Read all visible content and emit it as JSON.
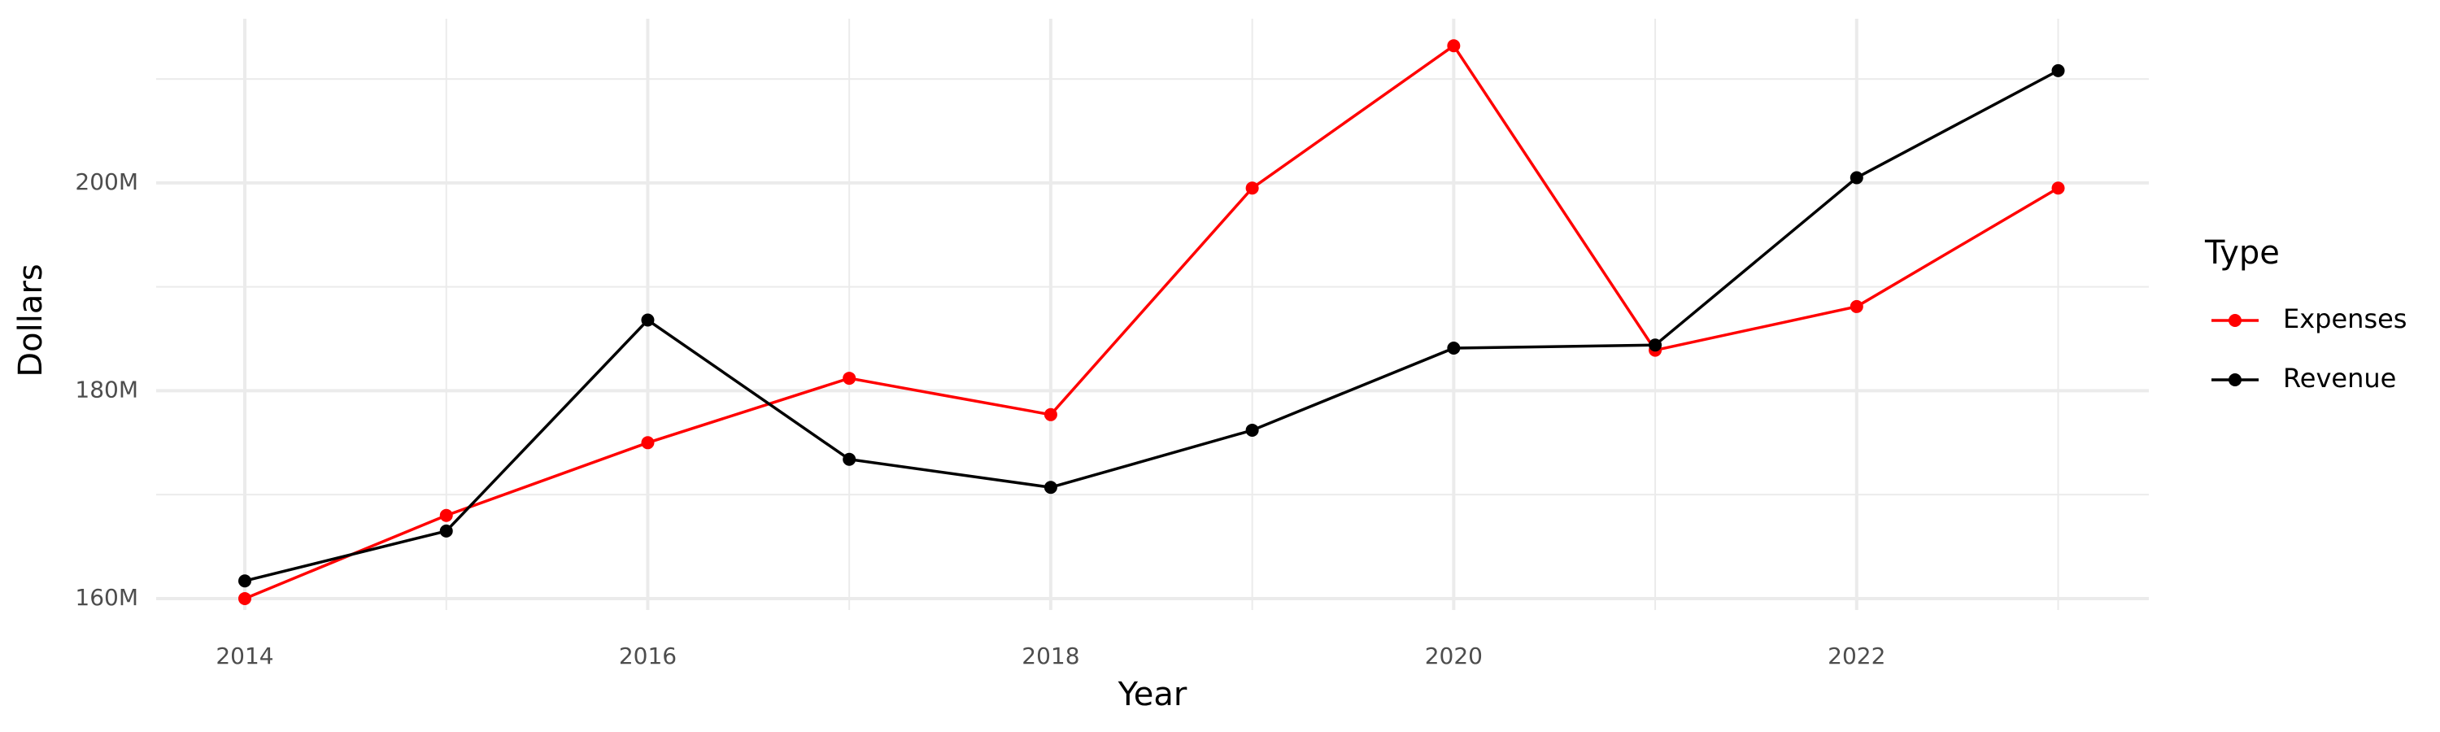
{
  "chart_data": {
    "type": "line",
    "x_label": "Year",
    "y_label": "Dollars",
    "x": [
      2014,
      2015,
      2016,
      2017,
      2018,
      2019,
      2020,
      2021,
      2022,
      2023
    ],
    "series": [
      {
        "name": "Expenses",
        "color": "#ff0000",
        "values": [
          160000000,
          168000000,
          175000000,
          181200000,
          177700000,
          199500000,
          213200000,
          183900000,
          188100000,
          199500000
        ]
      },
      {
        "name": "Revenue",
        "color": "#000000",
        "values": [
          161700000,
          166500000,
          186800000,
          173400000,
          170700000,
          176200000,
          184100000,
          184400000,
          200500000,
          210800000
        ]
      }
    ],
    "xlim": [
      2013.56,
      2023.45
    ],
    "xticks": [
      2014,
      2016,
      2018,
      2020,
      2022
    ],
    "xticks_minor": [
      2015,
      2017,
      2019,
      2021,
      2023
    ],
    "ylim": [
      158900000,
      215800000
    ],
    "yticks": [
      {
        "value": 160000000,
        "label": "160M"
      },
      {
        "value": 180000000,
        "label": "180M"
      },
      {
        "value": 200000000,
        "label": "200M"
      }
    ],
    "yticks_minor": [
      170000000,
      190000000,
      210000000
    ],
    "grid": true,
    "legend_title": "Type",
    "legend_position": "right"
  }
}
